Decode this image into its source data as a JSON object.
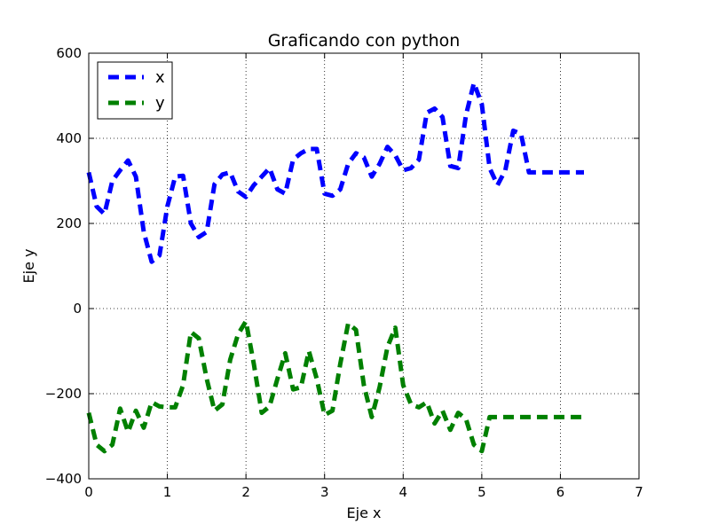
{
  "chart_data": {
    "type": "line",
    "title": "Graficando con python",
    "xlabel": "Eje x",
    "ylabel": "Eje y",
    "xlim": [
      0,
      7
    ],
    "ylim": [
      -400,
      600
    ],
    "xticks": [
      0,
      1,
      2,
      3,
      4,
      5,
      6,
      7
    ],
    "yticks": [
      -400,
      -200,
      0,
      200,
      400,
      600
    ],
    "xtick_labels": [
      "0",
      "1",
      "2",
      "3",
      "4",
      "5",
      "6",
      "7"
    ],
    "ytick_labels": [
      "−400",
      "−200",
      "0",
      "200",
      "400",
      "600"
    ],
    "grid": true,
    "legend_position": "top-left",
    "series": [
      {
        "name": "x",
        "color": "#0000ff",
        "style": "dashed",
        "x": [
          0.0,
          0.1,
          0.2,
          0.3,
          0.4,
          0.5,
          0.6,
          0.7,
          0.8,
          0.9,
          1.0,
          1.1,
          1.2,
          1.3,
          1.4,
          1.5,
          1.6,
          1.7,
          1.8,
          1.9,
          2.0,
          2.1,
          2.2,
          2.3,
          2.4,
          2.5,
          2.6,
          2.7,
          2.8,
          2.9,
          3.0,
          3.1,
          3.2,
          3.3,
          3.4,
          3.5,
          3.6,
          3.7,
          3.8,
          3.9,
          4.0,
          4.1,
          4.2,
          4.3,
          4.4,
          4.5,
          4.6,
          4.7,
          4.8,
          4.9,
          5.0,
          5.1,
          5.2,
          5.3,
          5.4,
          5.5,
          5.6,
          5.7,
          5.8,
          5.9,
          6.0,
          6.1,
          6.2,
          6.3
        ],
        "y": [
          320,
          240,
          222,
          300,
          325,
          348,
          310,
          180,
          110,
          125,
          240,
          310,
          312,
          200,
          168,
          180,
          292,
          315,
          320,
          275,
          262,
          290,
          310,
          330,
          280,
          270,
          350,
          365,
          375,
          375,
          270,
          265,
          280,
          340,
          365,
          355,
          310,
          340,
          380,
          360,
          325,
          330,
          350,
          460,
          470,
          450,
          335,
          330,
          455,
          530,
          480,
          330,
          290,
          325,
          418,
          410,
          320,
          320,
          320,
          320,
          320,
          320,
          320,
          320
        ]
      },
      {
        "name": "y",
        "color": "#008000",
        "style": "dashed",
        "x": [
          0.0,
          0.1,
          0.2,
          0.3,
          0.4,
          0.5,
          0.6,
          0.7,
          0.8,
          0.9,
          1.0,
          1.1,
          1.2,
          1.3,
          1.4,
          1.5,
          1.6,
          1.7,
          1.8,
          1.9,
          2.0,
          2.1,
          2.2,
          2.3,
          2.4,
          2.5,
          2.6,
          2.7,
          2.8,
          2.9,
          3.0,
          3.1,
          3.2,
          3.3,
          3.4,
          3.5,
          3.6,
          3.7,
          3.8,
          3.9,
          4.0,
          4.1,
          4.2,
          4.3,
          4.4,
          4.5,
          4.6,
          4.7,
          4.8,
          4.9,
          5.0,
          5.1,
          5.2,
          5.3,
          5.4,
          5.5,
          5.6,
          5.7,
          5.8,
          5.9,
          6.0,
          6.1,
          6.2,
          6.3
        ],
        "y": [
          -245,
          -320,
          -335,
          -320,
          -235,
          -290,
          -240,
          -280,
          -220,
          -230,
          -232,
          -232,
          -180,
          -55,
          -70,
          -165,
          -240,
          -225,
          -120,
          -60,
          -30,
          -130,
          -245,
          -230,
          -165,
          -105,
          -190,
          -185,
          -100,
          -165,
          -250,
          -240,
          -130,
          -35,
          -50,
          -180,
          -255,
          -185,
          -90,
          -45,
          -180,
          -225,
          -232,
          -220,
          -270,
          -240,
          -285,
          -245,
          -260,
          -320,
          -335,
          -255,
          -255,
          -255,
          -255,
          -255,
          -255,
          -255,
          -255,
          -255,
          -255,
          -255,
          -255,
          -255
        ]
      }
    ]
  }
}
